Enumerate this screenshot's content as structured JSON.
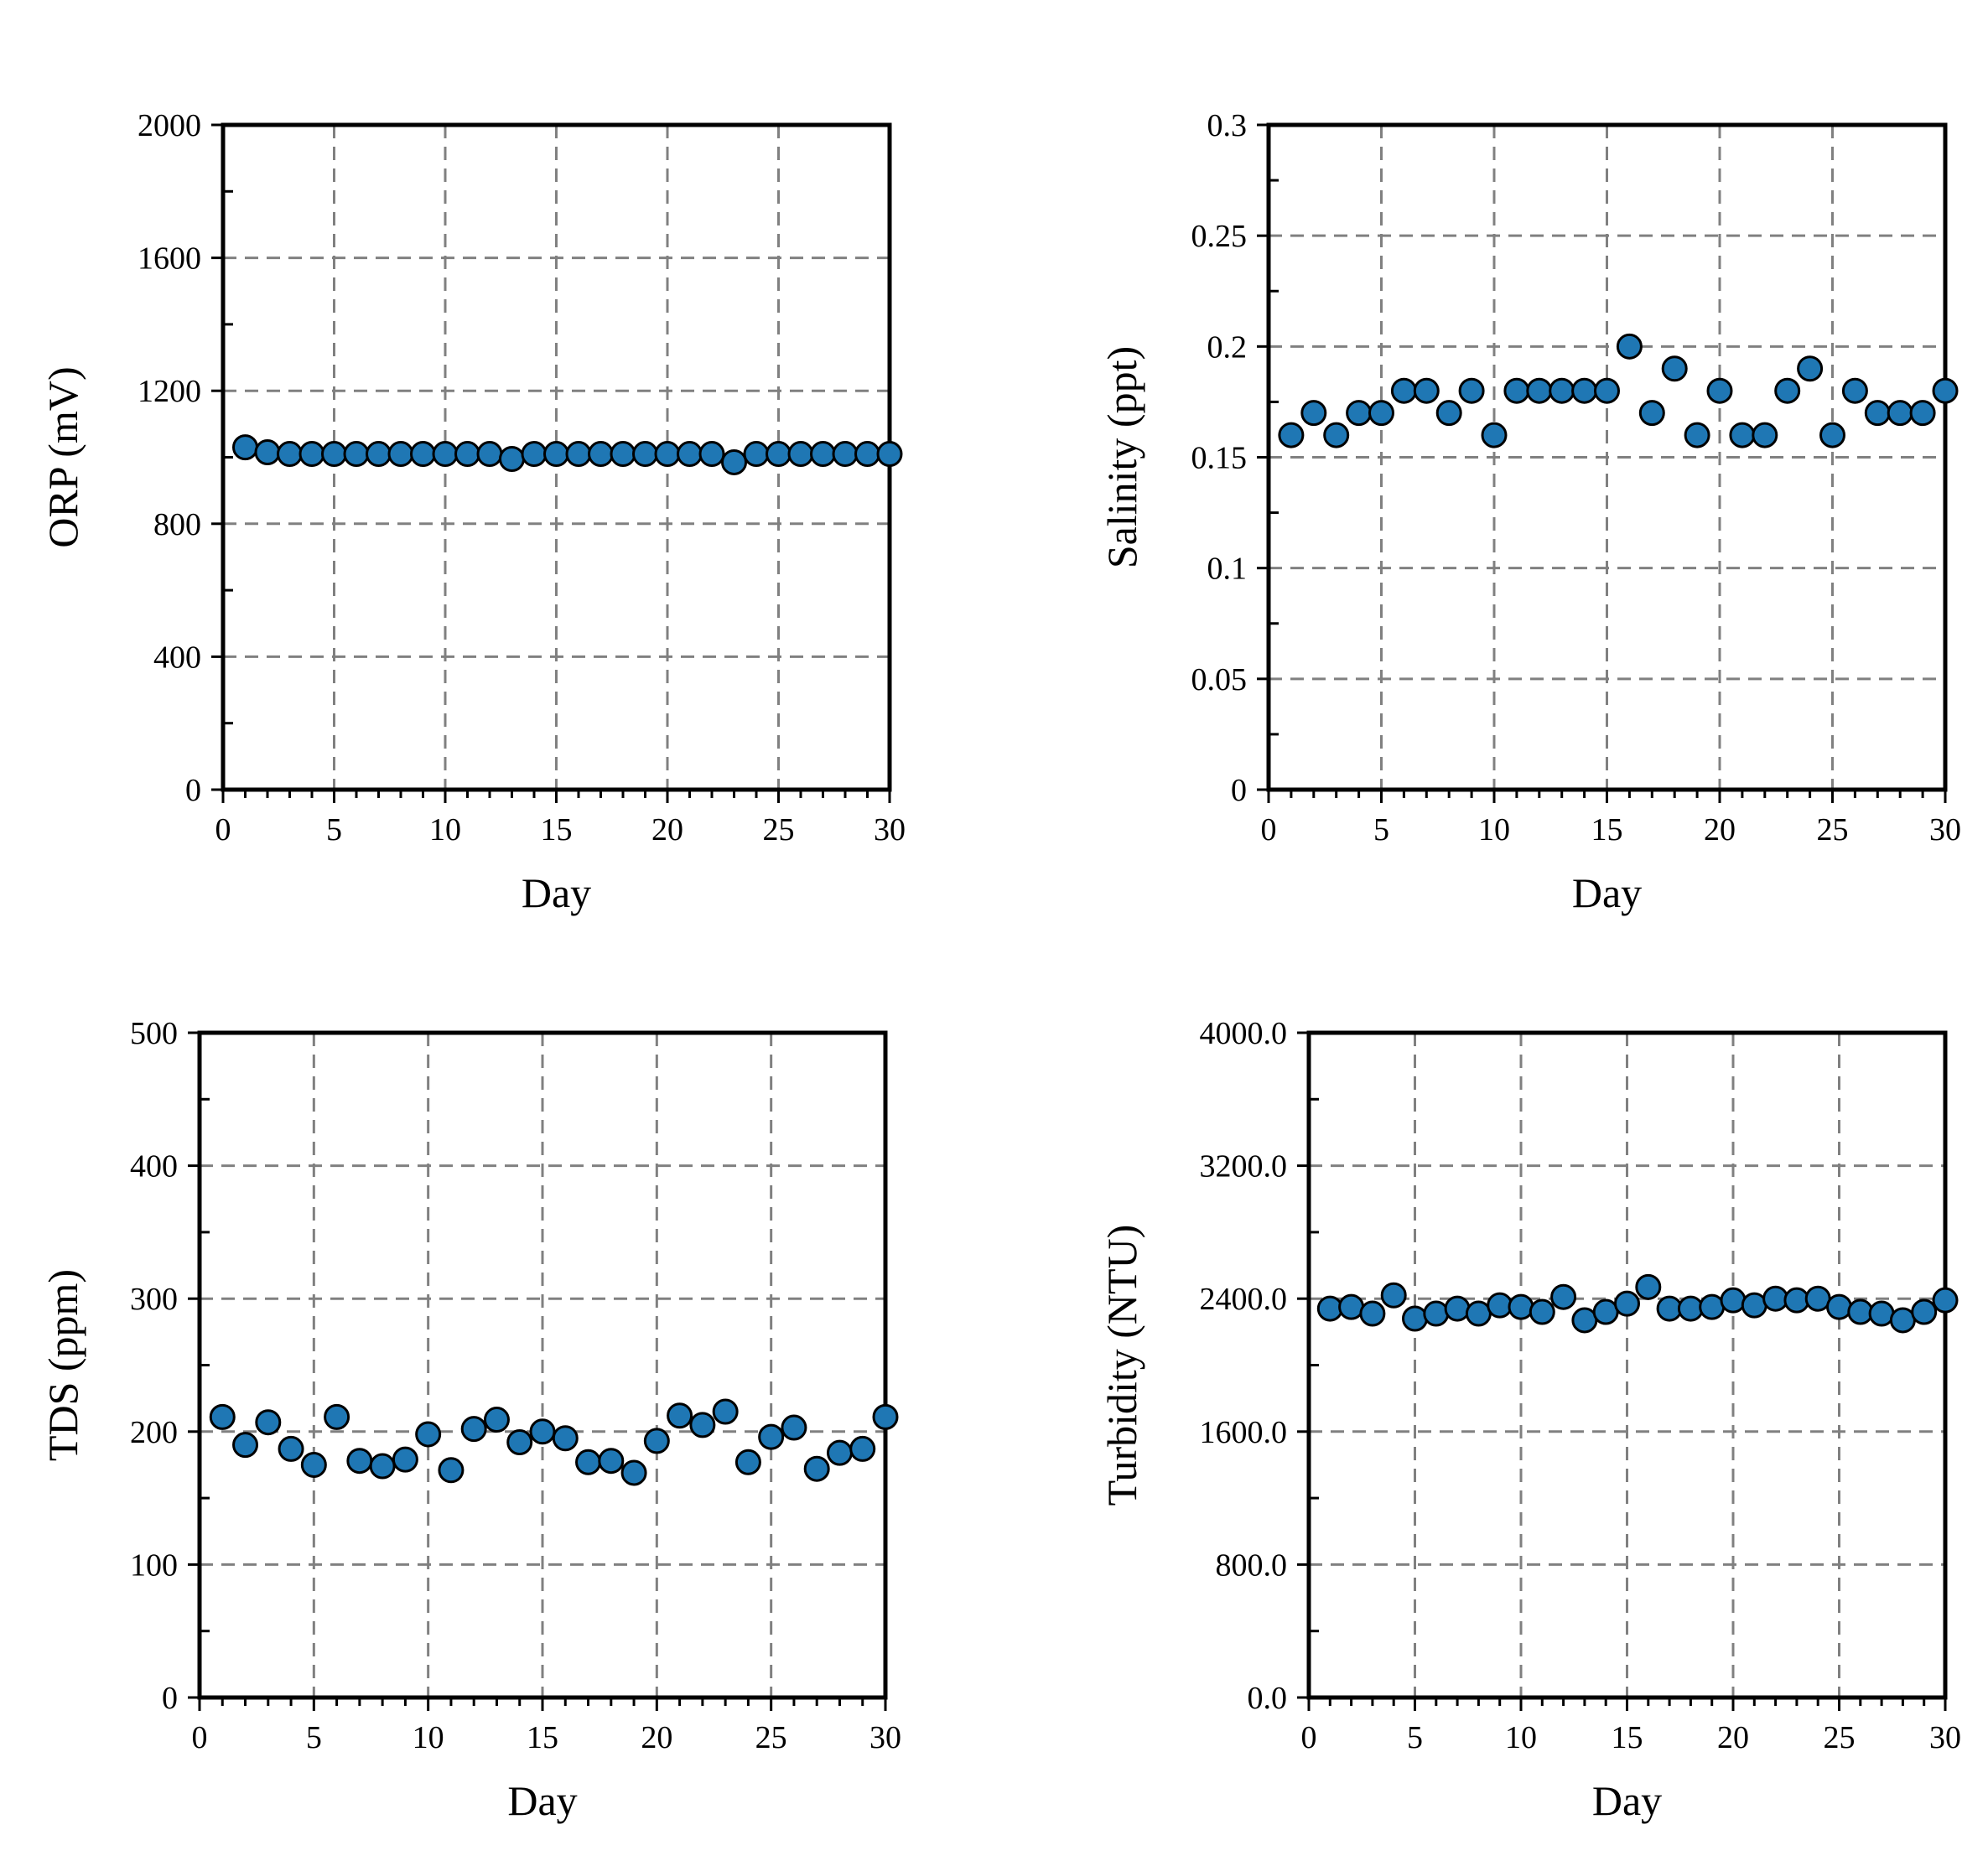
{
  "chart_data": [
    {
      "type": "scatter",
      "xlabel": "Day",
      "ylabel": "ORP (mV)",
      "xlim": [
        0,
        30
      ],
      "ylim": [
        0,
        2000
      ],
      "xticks": [
        0,
        5,
        10,
        15,
        20,
        25,
        30
      ],
      "yticks": [
        0,
        400,
        800,
        1200,
        1600,
        2000
      ],
      "ytick_labels": [
        "0",
        "400",
        "800",
        "1200",
        "1600",
        "2000"
      ],
      "grid": true,
      "x": [
        1,
        2,
        3,
        4,
        5,
        6,
        7,
        8,
        9,
        10,
        11,
        12,
        13,
        14,
        15,
        16,
        17,
        18,
        19,
        20,
        21,
        22,
        23,
        24,
        25,
        26,
        27,
        28,
        29,
        30
      ],
      "y": [
        1030,
        1015,
        1010,
        1010,
        1010,
        1010,
        1010,
        1010,
        1010,
        1010,
        1010,
        1010,
        995,
        1010,
        1010,
        1010,
        1010,
        1010,
        1010,
        1010,
        1010,
        1010,
        985,
        1010,
        1010,
        1010,
        1010,
        1010,
        1010,
        1010
      ]
    },
    {
      "type": "scatter",
      "xlabel": "Day",
      "ylabel": "Salinity (ppt)",
      "xlim": [
        0,
        30
      ],
      "ylim": [
        0,
        0.3
      ],
      "xticks": [
        0,
        5,
        10,
        15,
        20,
        25,
        30
      ],
      "yticks": [
        0,
        0.05,
        0.1,
        0.15,
        0.2,
        0.25,
        0.3
      ],
      "ytick_labels": [
        "0",
        "0.05",
        "0.1",
        "0.15",
        "0.2",
        "0.25",
        "0.3"
      ],
      "grid": true,
      "x": [
        1,
        2,
        3,
        4,
        5,
        6,
        7,
        8,
        9,
        10,
        11,
        12,
        13,
        14,
        15,
        16,
        17,
        18,
        19,
        20,
        21,
        22,
        23,
        24,
        25,
        26,
        27,
        28,
        29,
        30
      ],
      "y": [
        0.16,
        0.17,
        0.16,
        0.17,
        0.17,
        0.18,
        0.18,
        0.17,
        0.18,
        0.16,
        0.18,
        0.18,
        0.18,
        0.18,
        0.18,
        0.2,
        0.17,
        0.19,
        0.16,
        0.18,
        0.16,
        0.16,
        0.18,
        0.19,
        0.16,
        0.18,
        0.17,
        0.17,
        0.17,
        0.18
      ]
    },
    {
      "type": "scatter",
      "xlabel": "Day",
      "ylabel": "TDS (ppm)",
      "xlim": [
        0,
        30
      ],
      "ylim": [
        0,
        500
      ],
      "xticks": [
        0,
        5,
        10,
        15,
        20,
        25,
        30
      ],
      "yticks": [
        0,
        100,
        200,
        300,
        400,
        500
      ],
      "ytick_labels": [
        "0",
        "100",
        "200",
        "300",
        "400",
        "500"
      ],
      "grid": true,
      "x": [
        1,
        2,
        3,
        4,
        5,
        6,
        7,
        8,
        9,
        10,
        11,
        12,
        13,
        14,
        15,
        16,
        17,
        18,
        19,
        20,
        21,
        22,
        23,
        24,
        25,
        26,
        27,
        28,
        29,
        30
      ],
      "y": [
        211,
        190,
        207,
        187,
        175,
        211,
        178,
        174,
        179,
        198,
        171,
        202,
        209,
        192,
        200,
        195,
        177,
        178,
        169,
        193,
        212,
        205,
        215,
        177,
        196,
        203,
        172,
        184,
        187,
        211
      ]
    },
    {
      "type": "scatter",
      "xlabel": "Day",
      "ylabel": "Turbidity (NTU)",
      "xlim": [
        0,
        30
      ],
      "ylim": [
        0,
        4000
      ],
      "xticks": [
        0,
        5,
        10,
        15,
        20,
        25,
        30
      ],
      "yticks": [
        0,
        800,
        1600,
        2400,
        3200,
        4000
      ],
      "ytick_labels": [
        "0.0",
        "800.0",
        "1600.0",
        "2400.0",
        "3200.0",
        "4000.0"
      ],
      "grid": true,
      "x": [
        1,
        2,
        3,
        4,
        5,
        6,
        7,
        8,
        9,
        10,
        11,
        12,
        13,
        14,
        15,
        16,
        17,
        18,
        19,
        20,
        21,
        22,
        23,
        24,
        25,
        26,
        27,
        28,
        29,
        30
      ],
      "y": [
        2340,
        2350,
        2310,
        2420,
        2280,
        2310,
        2340,
        2310,
        2360,
        2350,
        2320,
        2410,
        2270,
        2320,
        2370,
        2470,
        2340,
        2340,
        2350,
        2390,
        2360,
        2400,
        2390,
        2400,
        2350,
        2320,
        2310,
        2270,
        2320,
        2390
      ]
    }
  ],
  "style": {
    "marker_fill": "#1f77b4",
    "marker_edge": "#000000",
    "grid_color": "#808080",
    "axis_color": "#000000"
  }
}
